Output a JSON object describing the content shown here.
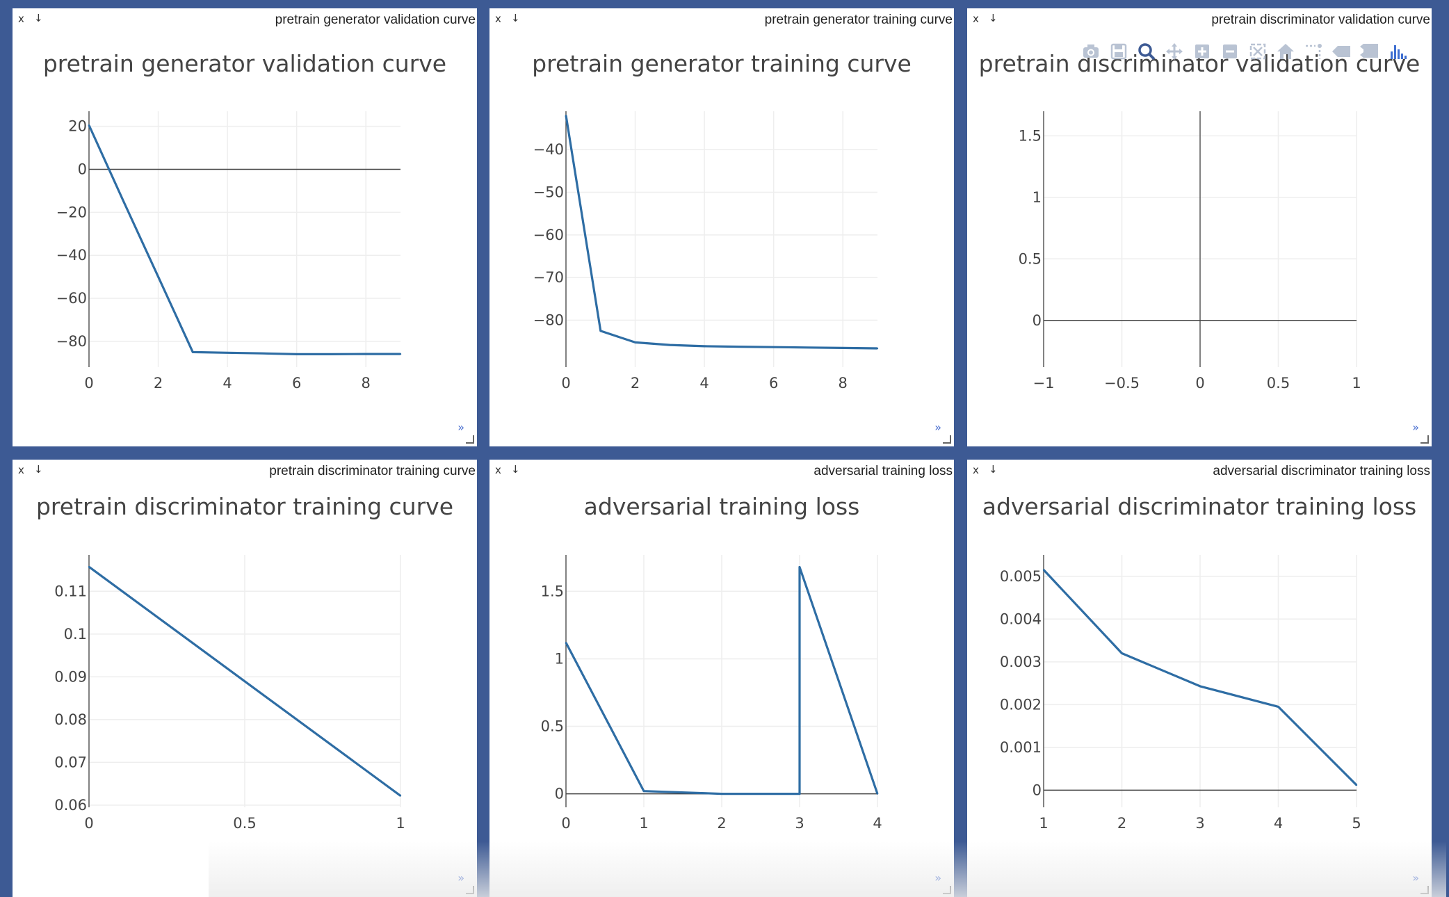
{
  "colors": {
    "background": "#3d5a94",
    "pane": "#ffffff",
    "line": "#2e6da4",
    "grid": "#eeeeee",
    "zeroline": "#444444",
    "text": "#444444"
  },
  "controls": {
    "close": "x",
    "download": "↓",
    "expand": "»"
  },
  "panes": [
    {
      "pane_title": "pretrain generator validation curve",
      "chart_data": {
        "type": "line",
        "title": "pretrain generator validation curve",
        "x": [
          0,
          1,
          2,
          3,
          4,
          5,
          6,
          7,
          8,
          9
        ],
        "y": [
          20.5,
          -15,
          -50,
          -85,
          -85.3,
          -85.6,
          -86,
          -86,
          -85.9,
          -85.9
        ],
        "xlim": [
          0,
          9
        ],
        "ylim": [
          -92,
          27
        ],
        "xticks": [
          0,
          2,
          4,
          6,
          8
        ],
        "xtick_labels": [
          "0",
          "2",
          "4",
          "6",
          "8"
        ],
        "yticks": [
          20,
          0,
          -20,
          -40,
          -60,
          -80
        ],
        "ytick_labels": [
          "20",
          "0",
          "−20",
          "−40",
          "−60",
          "−80"
        ],
        "zeroline_y": true,
        "zeroline_x": false,
        "grid": true
      }
    },
    {
      "pane_title": "pretrain generator training curve",
      "chart_data": {
        "type": "line",
        "title": "pretrain generator training curve",
        "x": [
          0,
          1,
          2,
          3,
          4,
          5,
          6,
          7,
          8,
          9
        ],
        "y": [
          -32,
          -82.5,
          -85.2,
          -85.8,
          -86.1,
          -86.2,
          -86.3,
          -86.4,
          -86.5,
          -86.6
        ],
        "xlim": [
          0,
          9
        ],
        "ylim": [
          -91,
          -31
        ],
        "xticks": [
          0,
          2,
          4,
          6,
          8
        ],
        "xtick_labels": [
          "0",
          "2",
          "4",
          "6",
          "8"
        ],
        "yticks": [
          -40,
          -50,
          -60,
          -70,
          -80
        ],
        "ytick_labels": [
          "−40",
          "−50",
          "−60",
          "−70",
          "−80"
        ],
        "zeroline_y": false,
        "zeroline_x": false,
        "grid": true
      }
    },
    {
      "pane_title": "pretrain discriminator validation curve",
      "chart_data": {
        "type": "line",
        "title": "pretrain discriminator validation curve",
        "x": [],
        "y": [],
        "xlim": [
          -1,
          1
        ],
        "ylim": [
          -0.38,
          1.7
        ],
        "xticks": [
          -1,
          -0.5,
          0,
          0.5,
          1
        ],
        "xtick_labels": [
          "−1",
          "−0.5",
          "0",
          "0.5",
          "1"
        ],
        "yticks": [
          1.5,
          1,
          0.5,
          0
        ],
        "ytick_labels": [
          "1.5",
          "1",
          "0.5",
          "0"
        ],
        "zeroline_y": true,
        "zeroline_x": true,
        "grid": true
      }
    },
    {
      "pane_title": "pretrain discriminator training curve",
      "chart_data": {
        "type": "line",
        "title": "pretrain discriminator training curve",
        "x": [
          0,
          1
        ],
        "y": [
          0.1157,
          0.0622
        ],
        "xlim": [
          0,
          1
        ],
        "ylim": [
          0.0595,
          0.1185
        ],
        "xticks": [
          0,
          0.5,
          1
        ],
        "xtick_labels": [
          "0",
          "0.5",
          "1"
        ],
        "yticks": [
          0.11,
          0.1,
          0.09,
          0.08,
          0.07,
          0.06
        ],
        "ytick_labels": [
          "0.11",
          "0.1",
          "0.09",
          "0.08",
          "0.07",
          "0.06"
        ],
        "zeroline_y": false,
        "zeroline_x": false,
        "grid": true
      }
    },
    {
      "pane_title": "adversarial training loss",
      "chart_data": {
        "type": "line",
        "title": "adversarial training loss",
        "x": [
          0,
          1,
          2,
          3,
          3,
          4
        ],
        "y": [
          1.12,
          0.02,
          0.0,
          0.0,
          1.68,
          0.0
        ],
        "xlim": [
          0,
          4
        ],
        "ylim": [
          -0.1,
          1.77
        ],
        "xticks": [
          0,
          1,
          2,
          3,
          4
        ],
        "xtick_labels": [
          "0",
          "1",
          "2",
          "3",
          "4"
        ],
        "yticks": [
          1.5,
          1,
          0.5,
          0
        ],
        "ytick_labels": [
          "1.5",
          "1",
          "0.5",
          "0"
        ],
        "zeroline_y": true,
        "zeroline_x": false,
        "grid": true
      }
    },
    {
      "pane_title": "adversarial discriminator training loss",
      "chart_data": {
        "type": "line",
        "title": "adversarial discriminator training loss",
        "x": [
          1,
          2,
          3,
          4,
          5
        ],
        "y": [
          0.00515,
          0.0032,
          0.00243,
          0.00195,
          0.00012
        ],
        "xlim": [
          1,
          5
        ],
        "ylim": [
          -0.0004,
          0.0055
        ],
        "xticks": [
          1,
          2,
          3,
          4,
          5
        ],
        "xtick_labels": [
          "1",
          "2",
          "3",
          "4",
          "5"
        ],
        "yticks": [
          0.005,
          0.004,
          0.003,
          0.002,
          0.001,
          0
        ],
        "ytick_labels": [
          "0.005",
          "0.004",
          "0.003",
          "0.002",
          "0.001",
          "0"
        ],
        "zeroline_y": true,
        "zeroline_x": false,
        "grid": true
      }
    }
  ],
  "modebar": [
    "camera-icon",
    "save-icon",
    "zoom-icon",
    "pan-icon",
    "zoom-in-icon",
    "zoom-out-icon",
    "autoscale-icon",
    "home-icon",
    "spike-lines-icon",
    "hover-closest-icon",
    "hover-compare-icon",
    "plotly-logo-icon"
  ]
}
